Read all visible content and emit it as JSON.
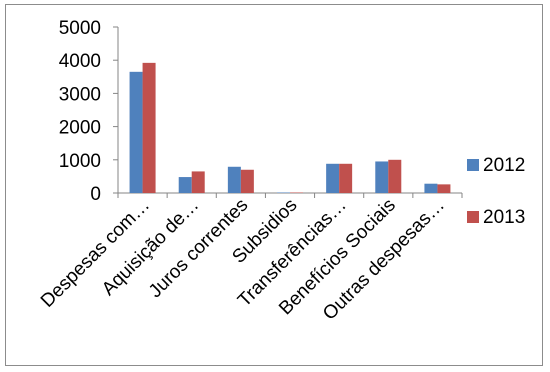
{
  "chart_data": {
    "type": "bar",
    "title": "",
    "xlabel": "",
    "ylabel": "",
    "ylim": [
      0,
      5000
    ],
    "yticks": [
      0,
      1000,
      2000,
      3000,
      4000,
      5000
    ],
    "grid": false,
    "legend_position": "right",
    "categories": [
      "Despesas com…",
      "Aquisição de…",
      "Juros correntes",
      "Subsidios",
      "Transferências…",
      "Benefícios Sociais",
      "Outras despesas…"
    ],
    "series": [
      {
        "name": "2012",
        "color": "#4f81bd",
        "values": [
          3650,
          480,
          790,
          15,
          880,
          950,
          280
        ]
      },
      {
        "name": "2013",
        "color": "#c0504d",
        "values": [
          3920,
          650,
          700,
          15,
          880,
          1000,
          260
        ]
      }
    ]
  }
}
